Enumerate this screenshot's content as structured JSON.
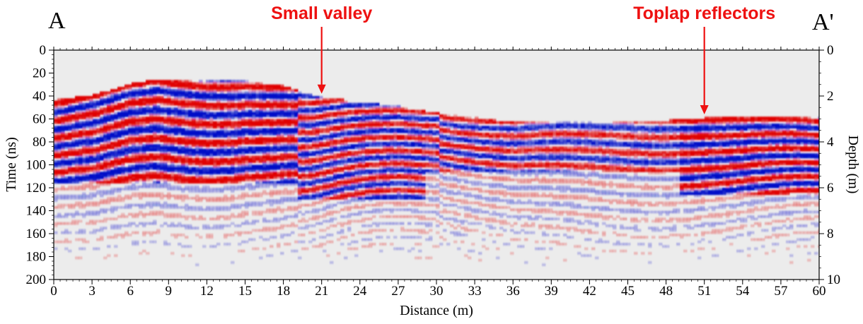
{
  "chart_data": {
    "type": "heatmap",
    "title": "",
    "xlabel": "Distance (m)",
    "ylabel": "Time (ns)",
    "y2label": "Depth (m)",
    "xlim": [
      0,
      60
    ],
    "ylim": [
      200,
      0
    ],
    "y2lim": [
      10,
      0
    ],
    "x_ticks": [
      "0",
      "3",
      "6",
      "9",
      "12",
      "15",
      "18",
      "21",
      "24",
      "27",
      "30",
      "33",
      "36",
      "39",
      "42",
      "45",
      "48",
      "51",
      "54",
      "57",
      "60"
    ],
    "y_ticks": [
      "0",
      "20",
      "40",
      "60",
      "80",
      "100",
      "120",
      "140",
      "160",
      "180",
      "200"
    ],
    "y2_ticks": [
      "0",
      "2",
      "4",
      "6",
      "8",
      "10"
    ],
    "corner_labels": {
      "left": "A",
      "right": "A'"
    },
    "annotations": [
      {
        "text": "Small valley",
        "x": 21,
        "y": 38
      },
      {
        "text": "Toplap reflectors",
        "x": 51,
        "y": 56
      }
    ],
    "colors": {
      "positive": "#e00000",
      "negative": "#0010c8",
      "background": "#ececec",
      "annotation": "#ee1111"
    }
  }
}
